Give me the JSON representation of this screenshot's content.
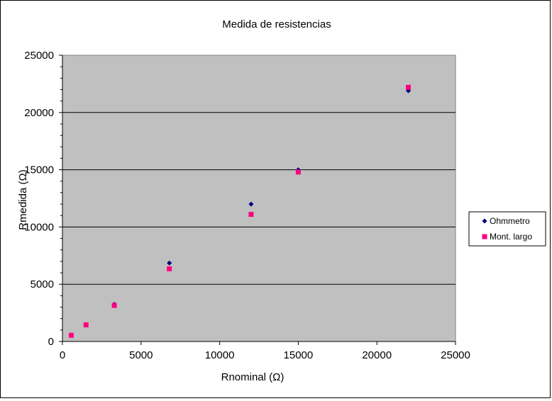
{
  "chart_data": {
    "type": "scatter",
    "title": "Medida de resistencias",
    "xlabel": "Rnominal (Ω)",
    "ylabel": "Rmedida (Ω)",
    "xlim": [
      0,
      25000
    ],
    "ylim": [
      0,
      25000
    ],
    "x_ticks": [
      0,
      5000,
      10000,
      15000,
      20000,
      25000
    ],
    "y_ticks": [
      0,
      5000,
      10000,
      15000,
      20000,
      25000
    ],
    "grid": "horizontal major",
    "legend_position": "right",
    "plot_background": "#c0c0c0",
    "series": [
      {
        "name": "Ohmmetro",
        "marker": "diamond",
        "color": "#000080",
        "points": [
          {
            "x": 560,
            "y": 550
          },
          {
            "x": 1500,
            "y": 1480
          },
          {
            "x": 3300,
            "y": 3250
          },
          {
            "x": 6800,
            "y": 6850
          },
          {
            "x": 12000,
            "y": 12000
          },
          {
            "x": 15000,
            "y": 15000
          },
          {
            "x": 22000,
            "y": 21900
          }
        ]
      },
      {
        "name": "Mont. largo",
        "marker": "square",
        "color": "#ff0080",
        "points": [
          {
            "x": 560,
            "y": 540
          },
          {
            "x": 1500,
            "y": 1450
          },
          {
            "x": 3300,
            "y": 3150
          },
          {
            "x": 6800,
            "y": 6350
          },
          {
            "x": 12000,
            "y": 11100
          },
          {
            "x": 15000,
            "y": 14800
          },
          {
            "x": 22000,
            "y": 22200
          }
        ]
      }
    ]
  }
}
